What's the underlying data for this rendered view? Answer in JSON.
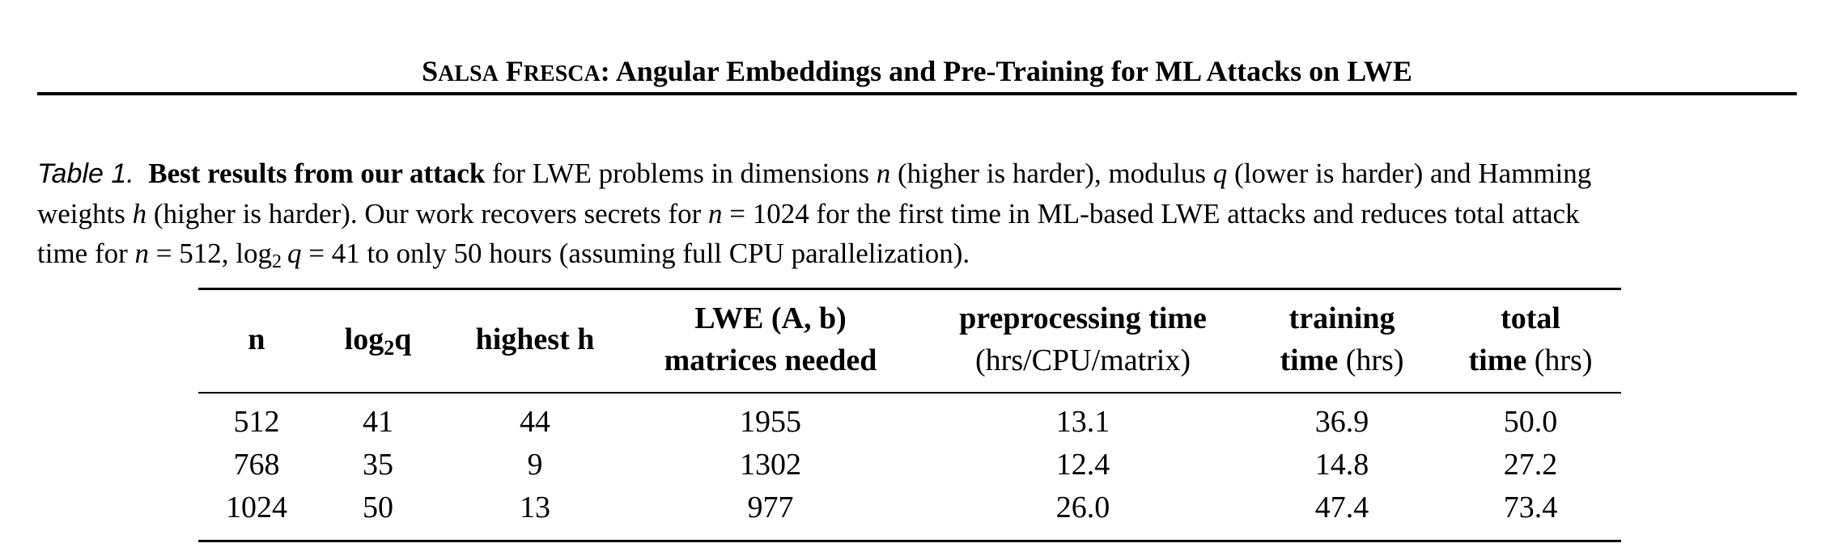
{
  "running_head": {
    "title_sc_1_big": "S",
    "title_sc_1_small": "ALSA",
    "title_sc_2_big": "F",
    "title_sc_2_small": "RESCA",
    "title_rest": ": Angular Embeddings and Pre-Training for ML Attacks on LWE"
  },
  "caption": {
    "label": "Table 1.",
    "bold": "Best results from our attack",
    "line1_a": " for LWE problems in dimensions ",
    "var_n": "n",
    "line1_b": " (higher is harder), modulus ",
    "var_q": "q",
    "line1_c": " (lower is harder) and Hamming",
    "line2_a": "weights ",
    "var_h": "h",
    "line2_b": " (higher is harder). Our work recovers secrets for ",
    "line2_eq": " = 1024",
    "line2_c": " for the first time in ML-based LWE attacks and reduces total attack",
    "line3_a": "time for ",
    "line3_eq1": " = 512, ",
    "log": "log",
    "log_base": "2",
    "line3_eq2": " = 41",
    "line3_b": " to only 50 hours (assuming full CPU parallelization)."
  },
  "table": {
    "headers": {
      "n": "n",
      "log2q_a": "log",
      "log2q_sub": "2",
      "log2q_b": "q",
      "highest_h": "highest h",
      "lwe_line1": "LWE (A, b)",
      "lwe_line2": "matrices needed",
      "prep_line1": "preprocessing time",
      "prep_line2": "(hrs/CPU/matrix)",
      "train_line1": "training",
      "train_line2_bold": "time",
      "train_line2_rest": " (hrs)",
      "total_line1": "total",
      "total_line2_bold": "time",
      "total_line2_rest": " (hrs)"
    },
    "rows": [
      [
        "512",
        "41",
        "44",
        "1955",
        "13.1",
        "36.9",
        "50.0"
      ],
      [
        "768",
        "35",
        "9",
        "1302",
        "12.4",
        "14.8",
        "27.2"
      ],
      [
        "1024",
        "50",
        "13",
        "977",
        "26.0",
        "47.4",
        "73.4"
      ]
    ]
  }
}
